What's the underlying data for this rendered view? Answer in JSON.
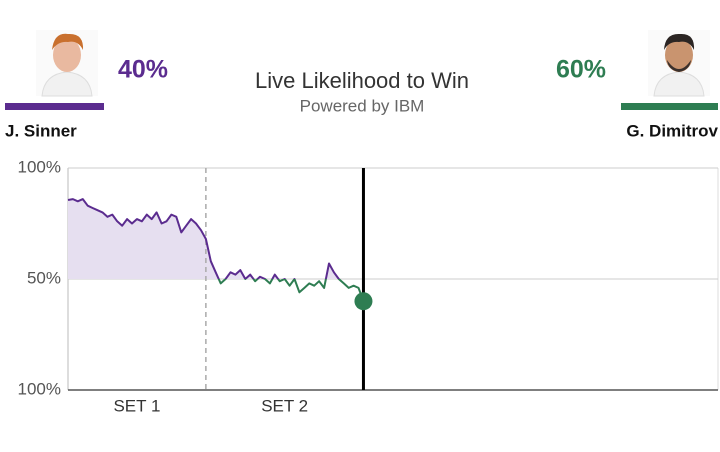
{
  "chart_data": {
    "type": "line",
    "title": "Live Likelihood to Win",
    "subtitle": "Powered by IBM",
    "players": [
      {
        "name": "J. Sinner",
        "value": 40,
        "label": "40%",
        "color": "#5b2c8f"
      },
      {
        "name": "G. Dimitrov",
        "value": 60,
        "label": "60%",
        "color": "#2e7d52"
      }
    ],
    "x": [
      0,
      1,
      2,
      3,
      4,
      5,
      6,
      7,
      8,
      9,
      10,
      11,
      12,
      13,
      14,
      15,
      16,
      17,
      18,
      19,
      20,
      21,
      22,
      23,
      24,
      25,
      26,
      27,
      28,
      29,
      30,
      31,
      32,
      33,
      34,
      35,
      36,
      37,
      38,
      39,
      40,
      41,
      42,
      43,
      44,
      45,
      46,
      47,
      48,
      49,
      50,
      51,
      52,
      53,
      54,
      55,
      56,
      57,
      58,
      59,
      60
    ],
    "values": [
      85.6,
      86,
      85,
      86,
      83,
      82,
      81,
      80,
      78,
      79,
      76,
      74,
      77,
      75,
      77,
      76,
      79,
      77,
      80,
      75,
      76,
      79,
      78,
      71,
      74,
      77,
      75,
      72,
      68,
      58,
      53,
      48,
      50,
      53,
      52,
      54,
      50,
      52,
      49,
      51,
      50,
      48,
      52,
      49,
      50,
      47,
      50,
      44,
      46,
      48,
      47,
      49,
      46,
      57,
      53,
      50,
      48,
      46,
      47,
      46,
      40
    ],
    "xlim": [
      0,
      132
    ],
    "ylim": [
      0,
      100
    ],
    "yticks": [
      {
        "value": 100,
        "label": "100%"
      },
      {
        "value": 50,
        "label": "50%"
      },
      {
        "value": 0,
        "label": "100%"
      }
    ],
    "sets": [
      "SET 1",
      "SET 2"
    ],
    "set_boundaries": [
      28
    ],
    "fill_color": "#e6dff0",
    "grid": true
  }
}
